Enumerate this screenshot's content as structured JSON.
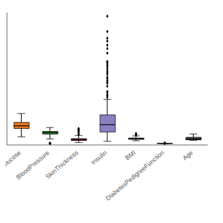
{
  "chart_data": {
    "type": "box",
    "categories": [
      "Glucose",
      "BloodPressure",
      "SkinThickness",
      "Insulin",
      "BMI",
      "DiabetesPedigreeFunction",
      "Age"
    ],
    "colors": [
      "#E07820",
      "#2D8B2D",
      "#8B1020",
      "#8B7FC0",
      "#404040",
      "#808080",
      "#404858"
    ],
    "min": [
      44,
      30,
      7,
      14,
      18,
      0.08,
      21
    ],
    "q1": [
      99,
      62,
      20,
      76,
      27,
      0.24,
      24
    ],
    "median": [
      117,
      72,
      23,
      125,
      32,
      0.37,
      29
    ],
    "q3": [
      140,
      80,
      32,
      190,
      36,
      0.63,
      41
    ],
    "max": [
      199,
      106,
      52,
      293,
      50,
      1.2,
      63
    ],
    "outliers": [
      [],
      [
        0,
        0,
        0,
        0,
        0,
        0
      ],
      [
        60,
        63,
        72,
        80,
        85,
        88,
        92,
        95,
        99
      ],
      [
        306,
        318,
        325,
        340,
        346,
        380,
        400,
        410,
        420,
        432,
        440,
        460,
        470,
        480,
        495,
        510,
        520,
        530,
        540,
        543,
        544,
        600,
        630,
        654,
        680,
        700,
        744,
        846
      ],
      [
        57,
        58,
        60,
        67
      ],
      [
        1.4,
        1.6,
        1.8,
        2.0,
        2.2,
        2.42
      ],
      []
    ],
    "ylim": [
      -10,
      870
    ],
    "tick_labels": "x",
    "marker": "diamond"
  }
}
